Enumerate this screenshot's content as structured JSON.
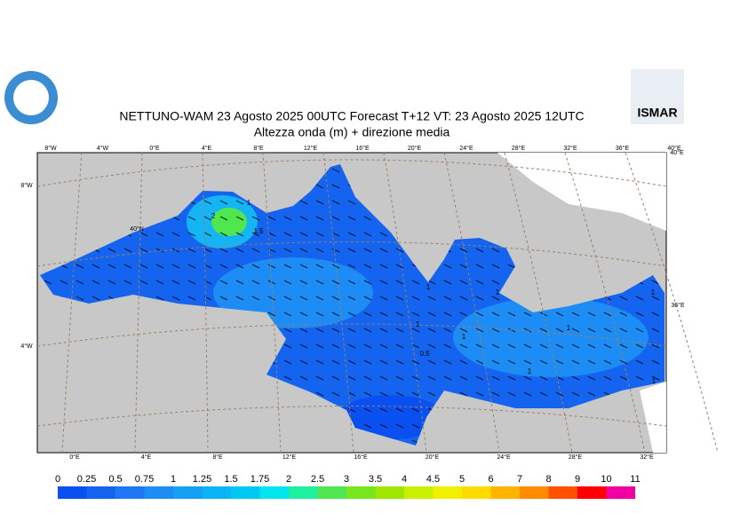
{
  "header": {
    "title": "NETTUNO-WAM  23   Agosto  2025 00UTC Forecast T+12 VT: 23   Agosto  2025 12UTC",
    "subtitle": "Altezza onda (m) + direzione media",
    "logo_right": "ISMAR"
  },
  "map": {
    "top_labels": [
      "8°W",
      "4°W",
      "0°E",
      "4°E",
      "8°E",
      "12°E",
      "16°E",
      "20°E",
      "24°E",
      "28°E",
      "32°E",
      "36°E",
      "40°E"
    ],
    "left_labels": [
      "8°W",
      "40°N",
      "4°W"
    ],
    "right_labels": [
      "40°E",
      "36°E"
    ],
    "bottom_labels": [
      "0°E",
      "4°E",
      "8°E",
      "12°E",
      "16°E",
      "20°E",
      "24°E",
      "28°E",
      "32°E"
    ],
    "contour_labels": [
      "2",
      "1",
      "1.5",
      "1",
      "0.5",
      "1",
      "1",
      "1",
      "1",
      "1",
      "1",
      "1"
    ]
  },
  "legend": {
    "labels": [
      "0",
      "0.25",
      "0.5",
      "0.75",
      "1",
      "1.25",
      "1.5",
      "1.75",
      "2",
      "2.5",
      "3",
      "3.5",
      "4",
      "4.5",
      "5",
      "6",
      "7",
      "8",
      "9",
      "10",
      "11"
    ],
    "colors": [
      "#0a50f0",
      "#1464f0",
      "#1e78f5",
      "#1e8cf5",
      "#14a0f5",
      "#0ab4f5",
      "#00c8f5",
      "#00e6f0",
      "#1ef0a0",
      "#50e650",
      "#78e61e",
      "#a0e600",
      "#c8f000",
      "#f0f000",
      "#ffdc00",
      "#ffb400",
      "#ff8c00",
      "#ff5000",
      "#ff0000",
      "#f000a0"
    ]
  }
}
